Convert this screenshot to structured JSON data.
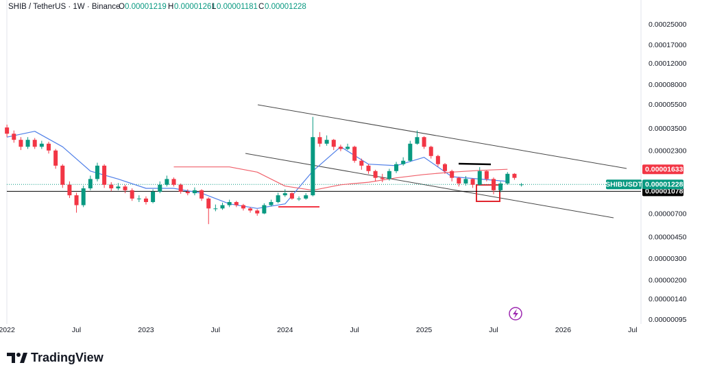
{
  "chart_data": {
    "type": "candlestick",
    "symbol": "SHIB / TetherUS · 1W · Binance",
    "ohlc_letters": [
      "O",
      "H",
      "L",
      "C"
    ],
    "symbol_tag": "SHIBUSDT",
    "brand": "TradingView",
    "log_scale": true,
    "grid": false,
    "up_color": "#089981",
    "down_color": "#f23645",
    "xlim": [
      2021.95,
      2026.56
    ],
    "xticks": [
      {
        "value": 2022,
        "label": "2022"
      },
      {
        "value": 2022.5,
        "label": "Jul"
      },
      {
        "value": 2023,
        "label": "2023"
      },
      {
        "value": 2023.5,
        "label": "Jul"
      },
      {
        "value": 2024,
        "label": "2024"
      },
      {
        "value": 2024.5,
        "label": "Jul"
      },
      {
        "value": 2025,
        "label": "2025"
      },
      {
        "value": 2025.5,
        "label": "Jul"
      },
      {
        "value": 2026,
        "label": "2026"
      },
      {
        "value": 2026.5,
        "label": "Jul"
      }
    ],
    "ylim": [
      8.8e-07,
      0.0004
    ],
    "yticks": [
      {
        "value": 0.00025,
        "label": "0.00025000"
      },
      {
        "value": 0.00017,
        "label": "0.00017000"
      },
      {
        "value": 0.00012,
        "label": "0.00012000"
      },
      {
        "value": 8e-05,
        "label": "0.00008000"
      },
      {
        "value": 5.5e-05,
        "label": "0.00005500"
      },
      {
        "value": 3.5e-05,
        "label": "0.00003500"
      },
      {
        "value": 2.3e-05,
        "label": "0.00002300"
      },
      {
        "value": 7e-06,
        "label": "0.00000700"
      },
      {
        "value": 4.5e-06,
        "label": "0.00000450"
      },
      {
        "value": 3e-06,
        "label": "0.00000300"
      },
      {
        "value": 2e-06,
        "label": "0.00000200"
      },
      {
        "value": 1.4e-06,
        "label": "0.00000140"
      },
      {
        "value": 9.5e-07,
        "label": "0.00000095"
      }
    ],
    "hline": {
      "value": 1.078e-05,
      "color": "#000000"
    },
    "x": [
      2022,
      2022.05,
      2022.1,
      2022.15,
      2022.2,
      2022.25,
      2022.3,
      2022.35,
      2022.4,
      2022.45,
      2022.5,
      2022.55,
      2022.6,
      2022.65,
      2022.7,
      2022.75,
      2022.8,
      2022.85,
      2022.9,
      2022.95,
      2023,
      2023.05,
      2023.1,
      2023.15,
      2023.2,
      2023.25,
      2023.3,
      2023.35,
      2023.4,
      2023.45,
      2023.5,
      2023.55,
      2023.6,
      2023.65,
      2023.7,
      2023.75,
      2023.8,
      2023.85,
      2023.9,
      2023.95,
      2024,
      2024.05,
      2024.1,
      2024.15,
      2024.2,
      2024.25,
      2024.3,
      2024.35,
      2024.4,
      2024.45,
      2024.5,
      2024.55,
      2024.6,
      2024.65,
      2024.7,
      2024.75,
      2024.8,
      2024.85,
      2024.9,
      2024.95,
      2025,
      2025.05,
      2025.1,
      2025.15,
      2025.2,
      2025.25,
      2025.3,
      2025.35,
      2025.4,
      2025.45,
      2025.5,
      2025.55,
      2025.6,
      2025.65,
      2025.7
    ],
    "open": [
      3.6e-05,
      3.2e-05,
      2.85e-05,
      2.5e-05,
      2.85e-05,
      2.5e-05,
      2.65e-05,
      2.33e-05,
      1.75e-05,
      1.22e-05,
      1e-05,
      8.3e-06,
      1.14e-05,
      1.36e-05,
      1.75e-05,
      1.22e-05,
      1.14e-05,
      1.18e-05,
      1.1e-05,
      9.4e-06,
      9.4e-06,
      8.8e-06,
      1.07e-05,
      1.22e-05,
      1.36e-05,
      1.22e-05,
      1.07e-05,
      1.04e-05,
      1.1e-05,
      9.4e-06,
      7.8e-06,
      7.8e-06,
      8.3e-06,
      8.8e-06,
      8.3e-06,
      7.8e-06,
      7.5e-06,
      7.1e-06,
      8.3e-06,
      8.8e-06,
      1e-05,
      1.04e-05,
      9.4e-06,
      9.4e-06,
      1e-05,
      3e-05,
      2.65e-05,
      2.85e-05,
      2.5e-05,
      2.4e-05,
      2.5e-05,
      1.92e-05,
      1.75e-05,
      1.58e-05,
      1.39e-05,
      1.36e-05,
      1.58e-05,
      1.8e-05,
      1.92e-05,
      2.65e-05,
      3e-05,
      2.5e-05,
      2.1e-05,
      1.8e-05,
      1.58e-05,
      1.39e-05,
      1.25e-05,
      1.36e-05,
      1.22e-05,
      1.58e-05,
      1.36e-05,
      1.1e-05,
      1.25e-05,
      1.5e-05,
      1.219e-05
    ],
    "high": [
      3.8e-05,
      3.4e-05,
      3e-05,
      3e-05,
      2.95e-05,
      2.8e-05,
      2.75e-05,
      2.4e-05,
      1.8e-05,
      1.3e-05,
      1.05e-05,
      1.2e-05,
      1.45e-05,
      1.85e-05,
      1.8e-05,
      1.28e-05,
      1.26e-05,
      1.22e-05,
      1.14e-05,
      1e-05,
      9.8e-06,
      1.12e-05,
      1.3e-05,
      1.45e-05,
      1.4e-05,
      1.25e-05,
      1.12e-05,
      1.16e-05,
      1.12e-05,
      9.6e-06,
      8.4e-06,
      8.7e-06,
      9.2e-06,
      9e-06,
      8.5e-06,
      8e-06,
      7.7e-06,
      8.6e-06,
      9.2e-06,
      1.05e-05,
      1.12e-05,
      1.06e-05,
      9.8e-06,
      1.04e-05,
      4.4e-05,
      3.3e-05,
      3.1e-05,
      2.9e-05,
      2.6e-05,
      2.65e-05,
      2.55e-05,
      2e-05,
      1.8e-05,
      1.62e-05,
      1.5e-05,
      1.65e-05,
      1.88e-05,
      2.05e-05,
      2.8e-05,
      3.4e-05,
      3.05e-05,
      2.55e-05,
      2.15e-05,
      1.84e-05,
      1.62e-05,
      1.42e-05,
      1.44e-05,
      1.38e-05,
      1.7e-05,
      1.6e-05,
      1.4e-05,
      1.3e-05,
      1.55e-05,
      1.52e-05,
      1.261e-05
    ],
    "low": [
      3e-05,
      2.7e-05,
      2.35e-05,
      2.4e-05,
      2.4e-05,
      2.4e-05,
      2.2e-05,
      1.65e-05,
      1.15e-05,
      9.5e-06,
      7.2e-06,
      8e-06,
      1.1e-05,
      1.3e-05,
      1.15e-05,
      1.08e-05,
      1.1e-05,
      1.04e-05,
      9e-06,
      8.8e-06,
      8.4e-06,
      8.6e-06,
      1.04e-05,
      1.18e-05,
      1.18e-05,
      1.03e-05,
      1e-05,
      1e-05,
      9e-06,
      5.8e-06,
      7.4e-06,
      7.6e-06,
      8e-06,
      8e-06,
      7.5e-06,
      7.2e-06,
      6.8e-06,
      7e-06,
      8.1e-06,
      8.6e-06,
      9.7e-06,
      9.2e-06,
      9e-06,
      9.2e-06,
      9.8e-06,
      2.5e-05,
      2.55e-05,
      2.35e-05,
      2.3e-05,
      2.35e-05,
      1.85e-05,
      1.62e-05,
      1.5e-05,
      1.3e-05,
      1.28e-05,
      1.32e-05,
      1.52e-05,
      1.75e-05,
      1.88e-05,
      2.6e-05,
      2.4e-05,
      2e-05,
      1.72e-05,
      1.5e-05,
      1.3e-05,
      1.18e-05,
      1.2e-05,
      1.15e-05,
      1.2e-05,
      1.3e-05,
      1.02e-05,
      1.06e-05,
      1.22e-05,
      1.34e-05,
      1.181e-05
    ],
    "close": [
      3.2e-05,
      2.85e-05,
      2.5e-05,
      2.85e-05,
      2.5e-05,
      2.65e-05,
      2.33e-05,
      1.75e-05,
      1.22e-05,
      1e-05,
      8.3e-06,
      1.14e-05,
      1.36e-05,
      1.75e-05,
      1.22e-05,
      1.14e-05,
      1.18e-05,
      1.1e-05,
      9.4e-06,
      9.4e-06,
      8.8e-06,
      1.07e-05,
      1.22e-05,
      1.36e-05,
      1.22e-05,
      1.07e-05,
      1.04e-05,
      1.1e-05,
      9.4e-06,
      7.8e-06,
      7.8e-06,
      8.3e-06,
      8.8e-06,
      8.3e-06,
      7.8e-06,
      7.5e-06,
      7.1e-06,
      8.3e-06,
      8.8e-06,
      1e-05,
      1.04e-05,
      9.4e-06,
      9.4e-06,
      1e-05,
      3e-05,
      2.65e-05,
      2.85e-05,
      2.5e-05,
      2.4e-05,
      2.5e-05,
      1.92e-05,
      1.75e-05,
      1.58e-05,
      1.39e-05,
      1.36e-05,
      1.58e-05,
      1.8e-05,
      1.92e-05,
      2.65e-05,
      3e-05,
      2.5e-05,
      2.1e-05,
      1.8e-05,
      1.58e-05,
      1.39e-05,
      1.25e-05,
      1.36e-05,
      1.22e-05,
      1.58e-05,
      1.36e-05,
      1.1e-05,
      1.25e-05,
      1.5e-05,
      1.39e-05,
      1.228e-05
    ],
    "moving_averages": [
      {
        "color": "#4f7fe8",
        "x": [
          2022,
          2022.2,
          2022.4,
          2022.6,
          2022.8,
          2023,
          2023.2,
          2023.4,
          2023.6,
          2023.8,
          2024,
          2024.2,
          2024.4,
          2024.6,
          2024.8,
          2025,
          2025.2,
          2025.4,
          2025.6
        ],
        "values": [
          3e-05,
          3.35e-05,
          2.5e-05,
          1.58e-05,
          1.36e-05,
          1.14e-05,
          1.14e-05,
          1.04e-05,
          8.5e-06,
          7.8e-06,
          8.5e-06,
          1.58e-05,
          2.5e-05,
          1.8e-05,
          1.75e-05,
          2.05e-05,
          1.42e-05,
          1.36e-05,
          1.3e-05
        ]
      },
      {
        "color": "#f0606a",
        "x": [
          2023.2,
          2023.4,
          2023.6,
          2023.8,
          2024,
          2024.2,
          2024.4,
          2024.6,
          2024.8,
          2025,
          2025.2,
          2025.4,
          2025.6
        ],
        "values": [
          1.71e-05,
          1.71e-05,
          1.71e-05,
          1.55e-05,
          1.19e-05,
          1.1e-05,
          1.22e-05,
          1.28e-05,
          1.39e-05,
          1.48e-05,
          1.55e-05,
          1.6e-05,
          1.633e-05
        ]
      }
    ]
  }
}
